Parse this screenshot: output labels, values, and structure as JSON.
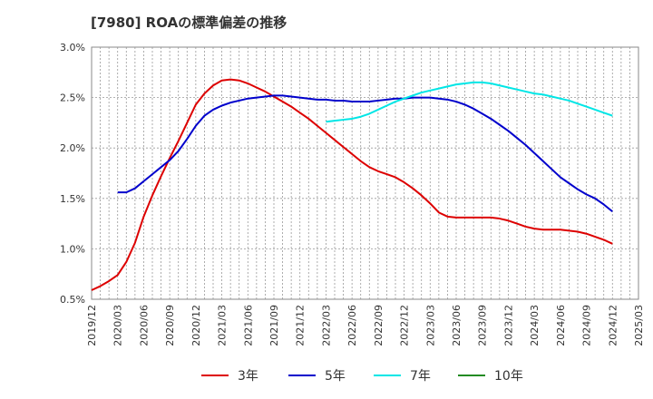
{
  "chart_data": {
    "type": "line",
    "title": "[7980]  ROAの標準偏差の推移",
    "ylim": [
      0.5,
      3.0
    ],
    "yticks": [
      "0.5%",
      "1.0%",
      "1.5%",
      "2.0%",
      "2.5%",
      "3.0%"
    ],
    "ytick_values": [
      0.5,
      1.0,
      1.5,
      2.0,
      2.5,
      3.0
    ],
    "xticks": [
      "2019/12",
      "2020/03",
      "2020/06",
      "2020/09",
      "2020/12",
      "2021/03",
      "2021/06",
      "2021/09",
      "2021/12",
      "2022/03",
      "2022/06",
      "2022/09",
      "2022/12",
      "2023/03",
      "2023/06",
      "2023/09",
      "2023/12",
      "2024/03",
      "2024/06",
      "2024/09",
      "2024/12",
      "2025/03"
    ],
    "grid": true,
    "legend_position": "bottom",
    "series": [
      {
        "name": "3年",
        "color": "#dd0000",
        "points": [
          [
            "2019/12",
            0.59
          ],
          [
            "2020/01",
            0.63
          ],
          [
            "2020/02",
            0.68
          ],
          [
            "2020/03",
            0.74
          ],
          [
            "2020/04",
            0.87
          ],
          [
            "2020/05",
            1.06
          ],
          [
            "2020/06",
            1.32
          ],
          [
            "2020/07",
            1.53
          ],
          [
            "2020/08",
            1.72
          ],
          [
            "2020/09",
            1.9
          ],
          [
            "2020/10",
            2.07
          ],
          [
            "2020/11",
            2.25
          ],
          [
            "2020/12",
            2.43
          ],
          [
            "2021/01",
            2.54
          ],
          [
            "2021/02",
            2.62
          ],
          [
            "2021/03",
            2.67
          ],
          [
            "2021/04",
            2.68
          ],
          [
            "2021/05",
            2.67
          ],
          [
            "2021/06",
            2.64
          ],
          [
            "2021/07",
            2.6
          ],
          [
            "2021/08",
            2.56
          ],
          [
            "2021/09",
            2.51
          ],
          [
            "2021/10",
            2.46
          ],
          [
            "2021/11",
            2.41
          ],
          [
            "2021/12",
            2.35
          ],
          [
            "2022/01",
            2.29
          ],
          [
            "2022/02",
            2.22
          ],
          [
            "2022/03",
            2.15
          ],
          [
            "2022/04",
            2.08
          ],
          [
            "2022/05",
            2.01
          ],
          [
            "2022/06",
            1.94
          ],
          [
            "2022/07",
            1.87
          ],
          [
            "2022/08",
            1.81
          ],
          [
            "2022/09",
            1.77
          ],
          [
            "2022/10",
            1.74
          ],
          [
            "2022/11",
            1.71
          ],
          [
            "2022/12",
            1.66
          ],
          [
            "2023/01",
            1.6
          ],
          [
            "2023/02",
            1.53
          ],
          [
            "2023/03",
            1.45
          ],
          [
            "2023/04",
            1.36
          ],
          [
            "2023/05",
            1.32
          ],
          [
            "2023/06",
            1.31
          ],
          [
            "2023/07",
            1.31
          ],
          [
            "2023/08",
            1.31
          ],
          [
            "2023/09",
            1.31
          ],
          [
            "2023/10",
            1.31
          ],
          [
            "2023/11",
            1.3
          ],
          [
            "2023/12",
            1.28
          ],
          [
            "2024/01",
            1.25
          ],
          [
            "2024/02",
            1.22
          ],
          [
            "2024/03",
            1.2
          ],
          [
            "2024/04",
            1.19
          ],
          [
            "2024/05",
            1.19
          ],
          [
            "2024/06",
            1.19
          ],
          [
            "2024/07",
            1.18
          ],
          [
            "2024/08",
            1.17
          ],
          [
            "2024/09",
            1.15
          ],
          [
            "2024/10",
            1.12
          ],
          [
            "2024/11",
            1.09
          ],
          [
            "2024/12",
            1.05
          ]
        ]
      },
      {
        "name": "5年",
        "color": "#0000cc",
        "points": [
          [
            "2020/03",
            1.56
          ],
          [
            "2020/04",
            1.56
          ],
          [
            "2020/05",
            1.6
          ],
          [
            "2020/06",
            1.67
          ],
          [
            "2020/07",
            1.74
          ],
          [
            "2020/08",
            1.81
          ],
          [
            "2020/09",
            1.88
          ],
          [
            "2020/10",
            1.97
          ],
          [
            "2020/11",
            2.09
          ],
          [
            "2020/12",
            2.22
          ],
          [
            "2021/01",
            2.32
          ],
          [
            "2021/02",
            2.38
          ],
          [
            "2021/03",
            2.42
          ],
          [
            "2021/04",
            2.45
          ],
          [
            "2021/05",
            2.47
          ],
          [
            "2021/06",
            2.49
          ],
          [
            "2021/07",
            2.5
          ],
          [
            "2021/08",
            2.51
          ],
          [
            "2021/09",
            2.52
          ],
          [
            "2021/10",
            2.52
          ],
          [
            "2021/11",
            2.51
          ],
          [
            "2021/12",
            2.5
          ],
          [
            "2022/01",
            2.49
          ],
          [
            "2022/02",
            2.48
          ],
          [
            "2022/03",
            2.48
          ],
          [
            "2022/04",
            2.47
          ],
          [
            "2022/05",
            2.47
          ],
          [
            "2022/06",
            2.46
          ],
          [
            "2022/07",
            2.46
          ],
          [
            "2022/08",
            2.46
          ],
          [
            "2022/09",
            2.47
          ],
          [
            "2022/10",
            2.48
          ],
          [
            "2022/11",
            2.49
          ],
          [
            "2022/12",
            2.49
          ],
          [
            "2023/01",
            2.5
          ],
          [
            "2023/02",
            2.5
          ],
          [
            "2023/03",
            2.5
          ],
          [
            "2023/04",
            2.49
          ],
          [
            "2023/05",
            2.48
          ],
          [
            "2023/06",
            2.46
          ],
          [
            "2023/07",
            2.43
          ],
          [
            "2023/08",
            2.39
          ],
          [
            "2023/09",
            2.34
          ],
          [
            "2023/10",
            2.29
          ],
          [
            "2023/11",
            2.23
          ],
          [
            "2023/12",
            2.17
          ],
          [
            "2024/01",
            2.1
          ],
          [
            "2024/02",
            2.03
          ],
          [
            "2024/03",
            1.95
          ],
          [
            "2024/04",
            1.87
          ],
          [
            "2024/05",
            1.79
          ],
          [
            "2024/06",
            1.71
          ],
          [
            "2024/07",
            1.65
          ],
          [
            "2024/08",
            1.59
          ],
          [
            "2024/09",
            1.54
          ],
          [
            "2024/10",
            1.5
          ],
          [
            "2024/11",
            1.44
          ],
          [
            "2024/12",
            1.37
          ]
        ]
      },
      {
        "name": "7年",
        "color": "#00e6e6",
        "points": [
          [
            "2022/03",
            2.26
          ],
          [
            "2022/04",
            2.27
          ],
          [
            "2022/05",
            2.28
          ],
          [
            "2022/06",
            2.29
          ],
          [
            "2022/07",
            2.31
          ],
          [
            "2022/08",
            2.34
          ],
          [
            "2022/09",
            2.38
          ],
          [
            "2022/10",
            2.42
          ],
          [
            "2022/11",
            2.46
          ],
          [
            "2022/12",
            2.49
          ],
          [
            "2023/01",
            2.52
          ],
          [
            "2023/02",
            2.55
          ],
          [
            "2023/03",
            2.57
          ],
          [
            "2023/04",
            2.59
          ],
          [
            "2023/05",
            2.61
          ],
          [
            "2023/06",
            2.63
          ],
          [
            "2023/07",
            2.64
          ],
          [
            "2023/08",
            2.65
          ],
          [
            "2023/09",
            2.65
          ],
          [
            "2023/10",
            2.64
          ],
          [
            "2023/11",
            2.62
          ],
          [
            "2023/12",
            2.6
          ],
          [
            "2024/01",
            2.58
          ],
          [
            "2024/02",
            2.56
          ],
          [
            "2024/03",
            2.54
          ],
          [
            "2024/04",
            2.53
          ],
          [
            "2024/05",
            2.51
          ],
          [
            "2024/06",
            2.49
          ],
          [
            "2024/07",
            2.47
          ],
          [
            "2024/08",
            2.44
          ],
          [
            "2024/09",
            2.41
          ],
          [
            "2024/10",
            2.38
          ],
          [
            "2024/11",
            2.35
          ],
          [
            "2024/12",
            2.32
          ]
        ]
      },
      {
        "name": "10年",
        "color": "#228b22",
        "points": []
      }
    ]
  }
}
